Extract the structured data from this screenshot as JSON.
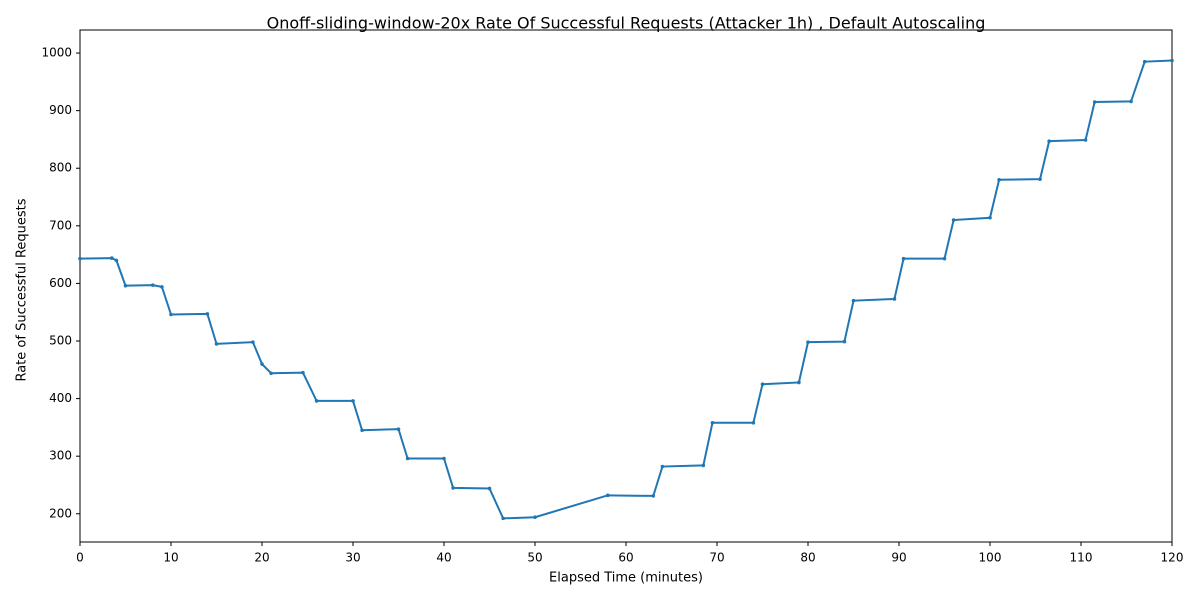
{
  "chart_data": {
    "type": "line",
    "title": "Onoff-sliding-window-20x Rate Of Successful Requests (Attacker 1h) , Default Autoscaling",
    "x_label": "Elapsed Time (minutes)",
    "y_label": "Rate of Successful Requests",
    "xlim": [
      0,
      120
    ],
    "ylim": [
      151,
      1040
    ],
    "xticks": [
      0,
      10,
      20,
      30,
      40,
      50,
      60,
      70,
      80,
      90,
      100,
      110,
      120
    ],
    "yticks": [
      200,
      300,
      400,
      500,
      600,
      700,
      800,
      900,
      1000
    ],
    "grid": false,
    "series": [
      {
        "color": "#1f77b4",
        "x": [
          0,
          3.5,
          4,
          5,
          8,
          9,
          10,
          14,
          15,
          19,
          20,
          21,
          24.5,
          26,
          30,
          31,
          35,
          36,
          40,
          41,
          45,
          46.5,
          50,
          58,
          63,
          64,
          68.5,
          69.5,
          74,
          75,
          79,
          80,
          84,
          85,
          89.5,
          90.5,
          95,
          96,
          100,
          101,
          105.5,
          106.5,
          110.5,
          111.5,
          115.5,
          117,
          120
        ],
        "values": [
          643,
          644,
          640,
          596,
          597,
          594,
          546,
          547,
          495,
          498,
          460,
          444,
          445,
          396,
          396,
          345,
          347,
          296,
          296,
          245,
          244,
          192,
          194,
          232,
          231,
          282,
          284,
          358,
          358,
          425,
          428,
          498,
          499,
          570,
          573,
          643,
          643,
          710,
          714,
          780,
          781,
          847,
          849,
          915,
          916,
          985,
          987
        ]
      }
    ]
  }
}
